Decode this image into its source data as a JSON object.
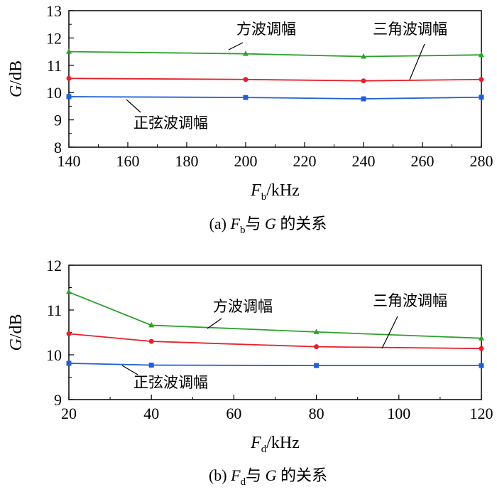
{
  "chart_data": [
    {
      "type": "line",
      "x_values": [
        140,
        200,
        240,
        280
      ],
      "xlim": [
        140,
        280
      ],
      "ylim": [
        8,
        13
      ],
      "x_ticks": [
        140,
        160,
        180,
        200,
        220,
        240,
        260,
        280
      ],
      "y_ticks": [
        8,
        9,
        10,
        11,
        12,
        13
      ],
      "xlabel": {
        "main": "F",
        "subscript": "b",
        "unit": "/kHz"
      },
      "ylabel": {
        "italic": "G",
        "rest": "/dB"
      },
      "caption": {
        "prefix": "(a) ",
        "var": "F",
        "sub": "b",
        "mid": "与 ",
        "g": "G",
        "rest": " 的关系"
      },
      "series": [
        {
          "name": "方波调幅",
          "color": "#2ca02c",
          "marker": "triangle",
          "values": [
            11.5,
            11.42,
            11.32,
            11.38
          ]
        },
        {
          "name": "三角波调幅",
          "color": "#e8202a",
          "marker": "circle",
          "values": [
            10.52,
            10.48,
            10.43,
            10.48
          ]
        },
        {
          "name": "正弦波调幅",
          "color": "#1f5fd6",
          "marker": "square",
          "values": [
            9.85,
            9.82,
            9.77,
            9.83
          ]
        }
      ]
    },
    {
      "type": "line",
      "x_values": [
        20,
        40,
        80,
        120
      ],
      "xlim": [
        20,
        120
      ],
      "ylim": [
        9,
        12
      ],
      "x_ticks": [
        20,
        40,
        60,
        80,
        100,
        120
      ],
      "y_ticks": [
        9,
        10,
        11,
        12
      ],
      "xlabel": {
        "main": "F",
        "subscript": "d",
        "unit": "/kHz"
      },
      "ylabel": {
        "italic": "G",
        "rest": "/dB"
      },
      "caption": {
        "prefix": "(b) ",
        "var": "F",
        "sub": "d",
        "mid": "与 ",
        "g": "G",
        "rest": " 的关系"
      },
      "series": [
        {
          "name": "方波调幅",
          "color": "#2ca02c",
          "marker": "triangle",
          "values": [
            11.4,
            10.66,
            10.51,
            10.37
          ]
        },
        {
          "name": "三角波调幅",
          "color": "#e8202a",
          "marker": "circle",
          "values": [
            10.47,
            10.3,
            10.18,
            10.14
          ]
        },
        {
          "name": "正弦波调幅",
          "color": "#1f5fd6",
          "marker": "square",
          "values": [
            9.81,
            9.77,
            9.76,
            9.76
          ]
        }
      ]
    }
  ]
}
